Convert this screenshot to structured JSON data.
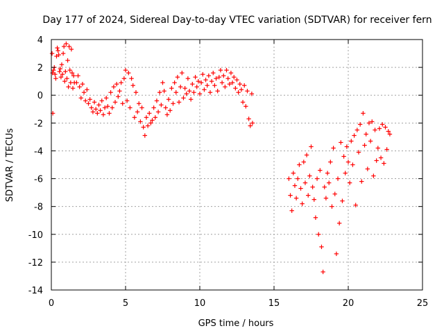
{
  "chart_data": {
    "type": "scatter",
    "title": "Day 177 of 2024, Sidereal Day-to-day VTEC variation (SDTVAR) for receiver fern",
    "xlabel": "GPS time / hours",
    "ylabel": "SDTVAR / TECUs",
    "xlim": [
      0,
      25
    ],
    "ylim": [
      -14,
      4
    ],
    "xticks": [
      "0",
      "5",
      "10",
      "15",
      "20",
      "25"
    ],
    "yticks": [
      "4",
      "2",
      "0",
      "-2",
      "-4",
      "-6",
      "-8",
      "-10",
      "-12",
      "-14"
    ],
    "grid": true,
    "marker": "plus",
    "color": "#ff0000",
    "series": [
      {
        "points": [
          [
            0.05,
            3.0
          ],
          [
            0.08,
            1.6
          ],
          [
            0.1,
            -1.3
          ],
          [
            0.15,
            1.8
          ],
          [
            0.2,
            2.0
          ],
          [
            0.25,
            1.5
          ],
          [
            0.3,
            1.2
          ],
          [
            0.35,
            2.8
          ],
          [
            0.4,
            3.4
          ],
          [
            0.45,
            3.2
          ],
          [
            0.5,
            2.9
          ],
          [
            0.55,
            1.7
          ],
          [
            0.6,
            1.9
          ],
          [
            0.65,
            1.3
          ],
          [
            0.7,
            2.2
          ],
          [
            0.75,
            1.5
          ],
          [
            0.8,
            3.0
          ],
          [
            0.85,
            3.5
          ],
          [
            0.9,
            1.0
          ],
          [
            0.95,
            1.7
          ],
          [
            1.0,
            3.7
          ],
          [
            1.05,
            1.2
          ],
          [
            1.1,
            2.5
          ],
          [
            1.15,
            0.6
          ],
          [
            1.2,
            3.5
          ],
          [
            1.25,
            1.8
          ],
          [
            1.3,
            0.9
          ],
          [
            1.35,
            3.3
          ],
          [
            1.4,
            1.6
          ],
          [
            1.45,
            0.5
          ],
          [
            1.5,
            1.4
          ],
          [
            1.55,
            0.9
          ],
          [
            1.7,
            0.9
          ],
          [
            1.8,
            1.4
          ],
          [
            1.9,
            0.6
          ],
          [
            2.0,
            -0.2
          ],
          [
            2.1,
            0.8
          ],
          [
            2.2,
            0.2
          ],
          [
            2.3,
            -0.4
          ],
          [
            2.4,
            0.4
          ],
          [
            2.5,
            -0.6
          ],
          [
            2.6,
            -0.3
          ],
          [
            2.7,
            -0.9
          ],
          [
            2.8,
            -1.2
          ],
          [
            2.9,
            -0.5
          ],
          [
            3.0,
            -1.0
          ],
          [
            3.1,
            -1.3
          ],
          [
            3.2,
            -0.7
          ],
          [
            3.3,
            -1.1
          ],
          [
            3.4,
            -0.4
          ],
          [
            3.5,
            -1.4
          ],
          [
            3.6,
            -0.9
          ],
          [
            3.7,
            -0.2
          ],
          [
            3.8,
            -0.8
          ],
          [
            3.9,
            -1.3
          ],
          [
            4.0,
            0.2
          ],
          [
            4.1,
            -0.9
          ],
          [
            4.2,
            0.6
          ],
          [
            4.3,
            -0.5
          ],
          [
            4.4,
            0.8
          ],
          [
            4.5,
            -0.1
          ],
          [
            4.6,
            0.3
          ],
          [
            4.7,
            0.9
          ],
          [
            4.8,
            -0.6
          ],
          [
            4.9,
            1.2
          ],
          [
            5.0,
            1.8
          ],
          [
            5.1,
            -0.4
          ],
          [
            5.2,
            1.6
          ],
          [
            5.3,
            -0.9
          ],
          [
            5.4,
            1.2
          ],
          [
            5.5,
            0.7
          ],
          [
            5.6,
            -1.6
          ],
          [
            5.7,
            0.2
          ],
          [
            5.8,
            -1.2
          ],
          [
            5.9,
            -0.6
          ],
          [
            6.0,
            -1.9
          ],
          [
            6.1,
            -0.9
          ],
          [
            6.2,
            -2.3
          ],
          [
            6.3,
            -2.9
          ],
          [
            6.4,
            -1.6
          ],
          [
            6.5,
            -2.2
          ],
          [
            6.6,
            -1.3
          ],
          [
            6.7,
            -2.0
          ],
          [
            6.8,
            -1.8
          ],
          [
            6.9,
            -0.9
          ],
          [
            7.0,
            -1.6
          ],
          [
            7.1,
            -0.4
          ],
          [
            7.2,
            -1.2
          ],
          [
            7.3,
            0.2
          ],
          [
            7.4,
            -0.7
          ],
          [
            7.5,
            0.9
          ],
          [
            7.6,
            0.3
          ],
          [
            7.7,
            -0.9
          ],
          [
            7.8,
            -1.4
          ],
          [
            7.9,
            -0.3
          ],
          [
            8.0,
            -1.1
          ],
          [
            8.1,
            0.5
          ],
          [
            8.2,
            -0.6
          ],
          [
            8.3,
            0.9
          ],
          [
            8.4,
            0.2
          ],
          [
            8.5,
            1.3
          ],
          [
            8.6,
            -0.5
          ],
          [
            8.7,
            0.6
          ],
          [
            8.8,
            1.6
          ],
          [
            8.9,
            -0.2
          ],
          [
            9.0,
            0.5
          ],
          [
            9.1,
            0.1
          ],
          [
            9.2,
            1.2
          ],
          [
            9.3,
            0.3
          ],
          [
            9.4,
            -0.3
          ],
          [
            9.5,
            0.8
          ],
          [
            9.6,
            0.2
          ],
          [
            9.7,
            1.3
          ],
          [
            9.8,
            0.6
          ],
          [
            9.9,
            1.0
          ],
          [
            10.0,
            0.1
          ],
          [
            10.1,
            0.9
          ],
          [
            10.2,
            1.5
          ],
          [
            10.3,
            0.4
          ],
          [
            10.4,
            1.1
          ],
          [
            10.5,
            0.7
          ],
          [
            10.6,
            1.4
          ],
          [
            10.7,
            0.2
          ],
          [
            10.8,
            1.0
          ],
          [
            10.9,
            1.6
          ],
          [
            11.0,
            0.7
          ],
          [
            11.1,
            1.2
          ],
          [
            11.2,
            0.3
          ],
          [
            11.3,
            1.3
          ],
          [
            11.4,
            1.8
          ],
          [
            11.5,
            0.9
          ],
          [
            11.6,
            1.4
          ],
          [
            11.7,
            0.6
          ],
          [
            11.8,
            1.8
          ],
          [
            11.9,
            1.2
          ],
          [
            12.0,
            0.8
          ],
          [
            12.1,
            1.6
          ],
          [
            12.2,
            0.9
          ],
          [
            12.3,
            1.3
          ],
          [
            12.4,
            0.5
          ],
          [
            12.5,
            1.1
          ],
          [
            12.6,
            0.2
          ],
          [
            12.7,
            0.8
          ],
          [
            12.8,
            0.4
          ],
          [
            12.9,
            -0.5
          ],
          [
            13.0,
            0.7
          ],
          [
            13.1,
            -0.8
          ],
          [
            13.2,
            0.3
          ],
          [
            13.3,
            -1.7
          ],
          [
            13.4,
            -2.2
          ],
          [
            13.5,
            0.1
          ],
          [
            13.55,
            -2.0
          ],
          [
            16.0,
            -6.0
          ],
          [
            16.1,
            -7.2
          ],
          [
            16.2,
            -8.3
          ],
          [
            16.3,
            -5.6
          ],
          [
            16.4,
            -6.5
          ],
          [
            16.5,
            -7.4
          ],
          [
            16.6,
            -6.0
          ],
          [
            16.7,
            -5.0
          ],
          [
            16.8,
            -6.7
          ],
          [
            16.9,
            -7.8
          ],
          [
            17.0,
            -4.8
          ],
          [
            17.1,
            -6.3
          ],
          [
            17.2,
            -4.3
          ],
          [
            17.3,
            -7.2
          ],
          [
            17.4,
            -5.8
          ],
          [
            17.5,
            -3.7
          ],
          [
            17.6,
            -6.6
          ],
          [
            17.7,
            -7.5
          ],
          [
            17.8,
            -8.8
          ],
          [
            17.9,
            -6.0
          ],
          [
            18.0,
            -10.0
          ],
          [
            18.1,
            -5.4
          ],
          [
            18.2,
            -10.9
          ],
          [
            18.3,
            -12.7
          ],
          [
            18.4,
            -6.6
          ],
          [
            18.5,
            -7.4
          ],
          [
            18.6,
            -5.6
          ],
          [
            18.7,
            -6.3
          ],
          [
            18.8,
            -4.8
          ],
          [
            18.9,
            -8.0
          ],
          [
            19.0,
            -3.8
          ],
          [
            19.1,
            -7.1
          ],
          [
            19.2,
            -11.4
          ],
          [
            19.3,
            -6.0
          ],
          [
            19.4,
            -9.2
          ],
          [
            19.5,
            -3.4
          ],
          [
            19.6,
            -7.6
          ],
          [
            19.7,
            -4.4
          ],
          [
            19.8,
            -5.6
          ],
          [
            19.9,
            -3.7
          ],
          [
            20.0,
            -4.8
          ],
          [
            20.1,
            -6.3
          ],
          [
            20.2,
            -3.3
          ],
          [
            20.3,
            -5.0
          ],
          [
            20.4,
            -2.9
          ],
          [
            20.5,
            -7.9
          ],
          [
            20.6,
            -2.5
          ],
          [
            20.7,
            -4.1
          ],
          [
            20.8,
            -2.1
          ],
          [
            20.9,
            -6.2
          ],
          [
            21.0,
            -1.3
          ],
          [
            21.1,
            -3.6
          ],
          [
            21.2,
            -2.8
          ],
          [
            21.3,
            -5.3
          ],
          [
            21.4,
            -2.0
          ],
          [
            21.5,
            -3.3
          ],
          [
            21.6,
            -1.9
          ],
          [
            21.7,
            -5.8
          ],
          [
            21.8,
            -2.5
          ],
          [
            21.9,
            -4.7
          ],
          [
            22.0,
            -3.8
          ],
          [
            22.1,
            -2.4
          ],
          [
            22.2,
            -4.5
          ],
          [
            22.3,
            -2.1
          ],
          [
            22.4,
            -4.9
          ],
          [
            22.5,
            -2.3
          ],
          [
            22.6,
            -3.9
          ],
          [
            22.7,
            -2.6
          ],
          [
            22.8,
            -2.8
          ]
        ]
      }
    ]
  }
}
